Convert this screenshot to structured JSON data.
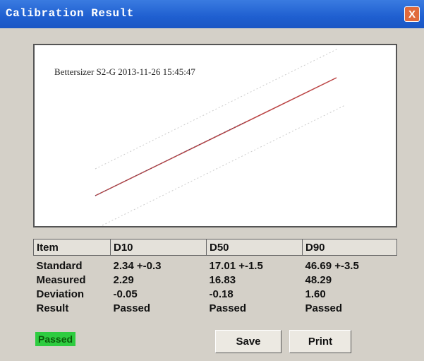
{
  "window": {
    "title": "Calibration Result",
    "close": "X"
  },
  "plot": {
    "caption": "Bettersizer S2-G 2013-11-26 15:45:47"
  },
  "table": {
    "header": [
      "Item",
      "D10",
      "D50",
      "D90"
    ],
    "rows": [
      [
        "Standard",
        "2.34 +-0.3",
        "17.01 +-1.5",
        "46.69 +-3.5"
      ],
      [
        "Measured",
        "2.29",
        "16.83",
        "48.29"
      ],
      [
        "Deviation",
        "-0.05",
        "-0.18",
        "1.60"
      ],
      [
        "Result",
        "Passed",
        "Passed",
        "Passed"
      ]
    ]
  },
  "status": "Passed",
  "buttons": [
    "Save",
    "Print"
  ]
}
